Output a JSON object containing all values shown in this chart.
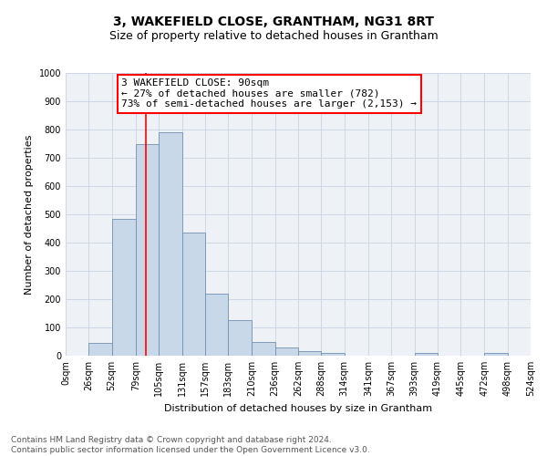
{
  "title": "3, WAKEFIELD CLOSE, GRANTHAM, NG31 8RT",
  "subtitle": "Size of property relative to detached houses in Grantham",
  "xlabel": "Distribution of detached houses by size in Grantham",
  "ylabel": "Number of detached properties",
  "bin_edges": [
    0,
    26,
    52,
    79,
    105,
    131,
    157,
    183,
    210,
    236,
    262,
    288,
    314,
    341,
    367,
    393,
    419,
    445,
    472,
    498,
    524
  ],
  "bin_labels": [
    "0sqm",
    "26sqm",
    "52sqm",
    "79sqm",
    "105sqm",
    "131sqm",
    "157sqm",
    "183sqm",
    "210sqm",
    "236sqm",
    "262sqm",
    "288sqm",
    "314sqm",
    "341sqm",
    "367sqm",
    "393sqm",
    "419sqm",
    "445sqm",
    "472sqm",
    "498sqm",
    "524sqm"
  ],
  "bar_heights": [
    0,
    45,
    485,
    750,
    790,
    435,
    220,
    125,
    50,
    30,
    15,
    10,
    0,
    0,
    0,
    10,
    0,
    0,
    10,
    0
  ],
  "bar_color": "#c8d8e8",
  "bar_edgecolor": "#7090b0",
  "property_line_x": 90,
  "property_line_color": "red",
  "ylim": [
    0,
    1000
  ],
  "yticks": [
    0,
    100,
    200,
    300,
    400,
    500,
    600,
    700,
    800,
    900,
    1000
  ],
  "annotation_title": "3 WAKEFIELD CLOSE: 90sqm",
  "annotation_line1": "← 27% of detached houses are smaller (782)",
  "annotation_line2": "73% of semi-detached houses are larger (2,153) →",
  "annotation_box_color": "white",
  "annotation_box_edgecolor": "red",
  "footer_line1": "Contains HM Land Registry data © Crown copyright and database right 2024.",
  "footer_line2": "Contains public sector information licensed under the Open Government Licence v3.0.",
  "bg_color": "#eef2f7",
  "grid_color": "#ccd8e4",
  "title_fontsize": 10,
  "subtitle_fontsize": 9,
  "label_fontsize": 8,
  "tick_fontsize": 7,
  "annotation_fontsize": 8,
  "footer_fontsize": 6.5
}
